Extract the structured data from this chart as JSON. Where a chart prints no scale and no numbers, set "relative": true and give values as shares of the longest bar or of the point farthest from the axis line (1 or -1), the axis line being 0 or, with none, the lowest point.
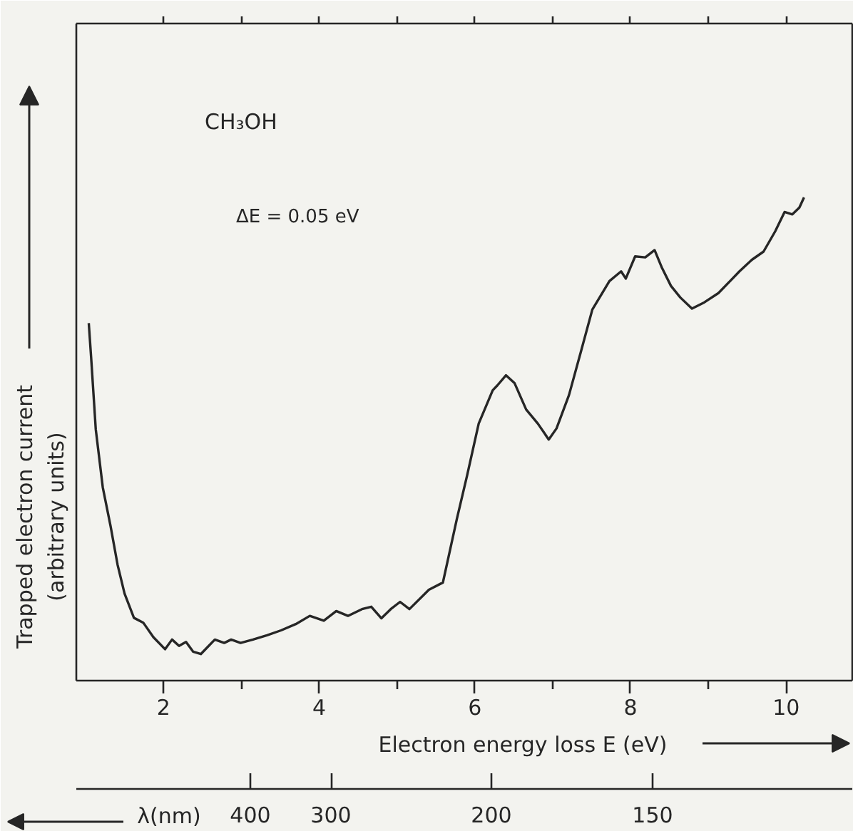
{
  "chart_data": {
    "type": "line",
    "xlabel": "Electron energy loss E (eV)",
    "ylabel": "Trapped electron current\n(arbitrary units)",
    "annotations": [
      "CH₃OH",
      "ΔE = 0.05 eV",
      "λ(nm)",
      "400",
      "300",
      "200",
      "150"
    ],
    "xlim": [
      0.88,
      10.85
    ],
    "xticks": [
      2,
      {
        "value": 3,
        "label": null
      },
      4,
      {
        "value": 5,
        "label": null
      },
      6,
      {
        "value": 7,
        "label": null
      },
      8,
      {
        "value": 9,
        "label": null
      },
      10
    ],
    "relative": true,
    "tick_labels": "x",
    "series": [
      {
        "color": "#262626",
        "x": [
          1.04,
          1.07,
          1.13,
          1.22,
          1.32,
          1.41,
          1.5,
          1.62,
          1.74,
          1.87,
          2.02,
          2.11,
          2.2,
          2.29,
          2.38,
          2.48,
          2.57,
          2.66,
          2.78,
          2.87,
          2.99,
          3.15,
          3.33,
          3.51,
          3.7,
          3.88,
          4.06,
          4.22,
          4.37,
          4.55,
          4.67,
          4.8,
          4.92,
          5.04,
          5.16,
          5.41,
          5.59,
          5.77,
          5.9,
          6.05,
          6.23,
          6.29,
          6.4,
          6.51,
          6.66,
          6.81,
          6.95,
          7.05,
          7.21,
          7.36,
          7.51,
          7.73,
          7.88,
          7.94,
          8.06,
          8.19,
          8.31,
          8.4,
          8.52,
          8.64,
          8.79,
          8.95,
          9.13,
          9.28,
          9.4,
          9.56,
          9.71,
          9.86,
          9.98,
          10.08,
          10.17,
          10.23
        ],
        "values": [
          0.74,
          0.67,
          0.52,
          0.4,
          0.32,
          0.24,
          0.18,
          0.13,
          0.12,
          0.09,
          0.065,
          0.085,
          0.072,
          0.08,
          0.06,
          0.055,
          0.07,
          0.085,
          0.078,
          0.085,
          0.078,
          0.085,
          0.094,
          0.104,
          0.117,
          0.134,
          0.124,
          0.144,
          0.134,
          0.148,
          0.153,
          0.129,
          0.148,
          0.163,
          0.148,
          0.188,
          0.203,
          0.335,
          0.424,
          0.532,
          0.601,
          0.611,
          0.632,
          0.616,
          0.561,
          0.532,
          0.499,
          0.522,
          0.591,
          0.679,
          0.768,
          0.827,
          0.847,
          0.832,
          0.878,
          0.876,
          0.891,
          0.856,
          0.817,
          0.793,
          0.77,
          0.783,
          0.802,
          0.827,
          0.847,
          0.871,
          0.888,
          0.93,
          0.97,
          0.965,
          0.979,
          1.0
        ]
      }
    ]
  }
}
